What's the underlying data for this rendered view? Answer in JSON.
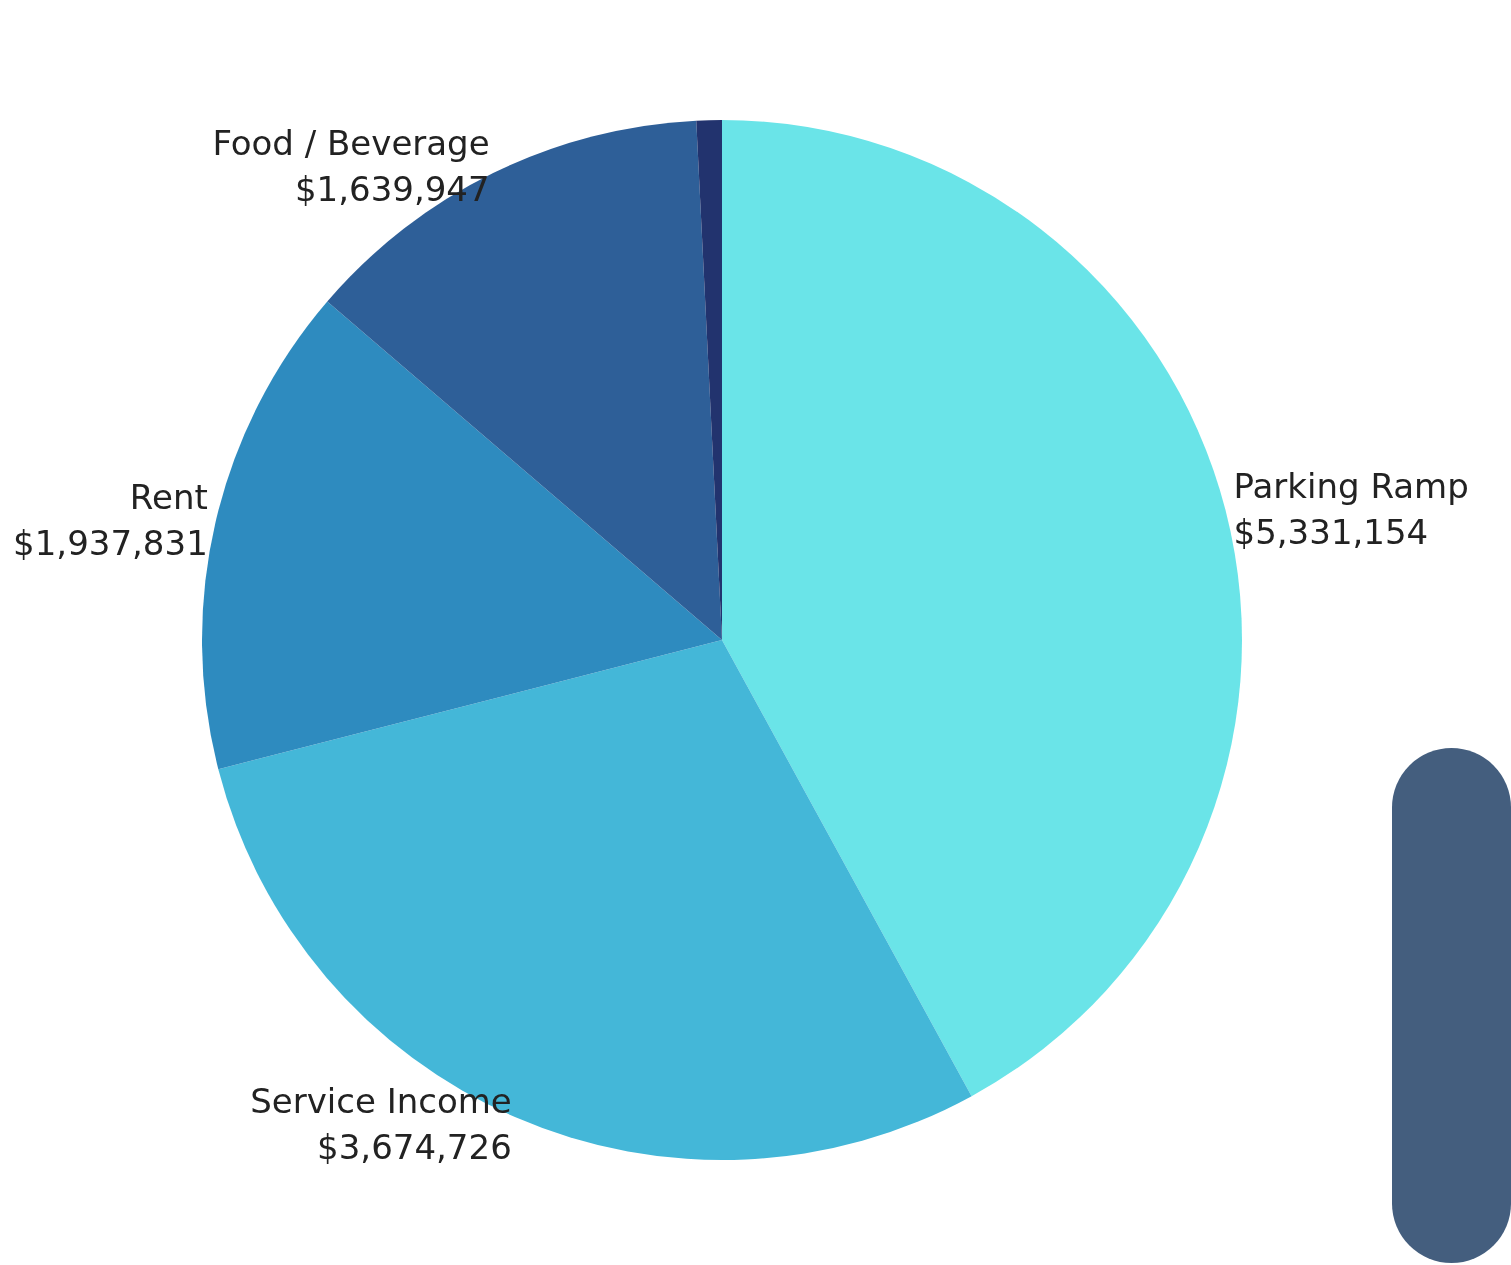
{
  "chart_data": {
    "type": "pie",
    "categories": [
      "Parking Ramp",
      "Service Income",
      "Rent",
      "Food / Beverage",
      null
    ],
    "values": [
      5331154,
      3674726,
      1937831,
      1639947,
      100000
    ],
    "colors": [
      "#6ae4e8",
      "#44b7d8",
      "#2e8bbf",
      "#2e5f98",
      "#22336e"
    ],
    "value_labels": [
      "$5,331,154",
      "$3,674,726",
      "$1,937,831",
      "$1,639,947",
      null
    ],
    "legend": false
  }
}
